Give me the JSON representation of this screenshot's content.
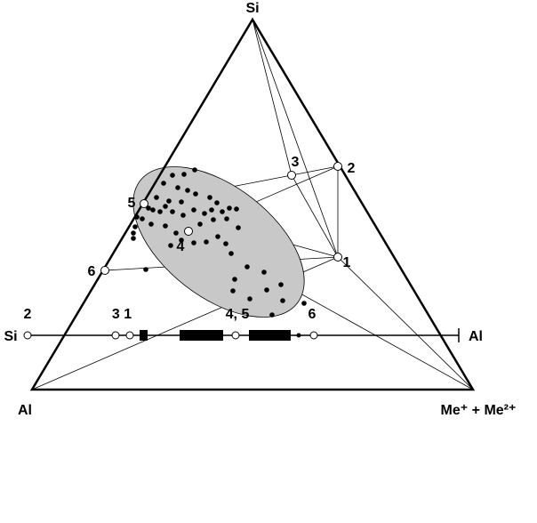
{
  "vertices": {
    "top": "Si",
    "left": "Al",
    "right": "Me⁺ + Me²⁺"
  },
  "points": [
    {
      "label": "1"
    },
    {
      "label": "2"
    },
    {
      "label": "3"
    },
    {
      "label": "4"
    },
    {
      "label": "5"
    },
    {
      "label": "6"
    }
  ],
  "scale": {
    "left": "Si",
    "right": "Al",
    "labels": [
      "2",
      "3 1",
      "4, 5",
      "6"
    ]
  }
}
